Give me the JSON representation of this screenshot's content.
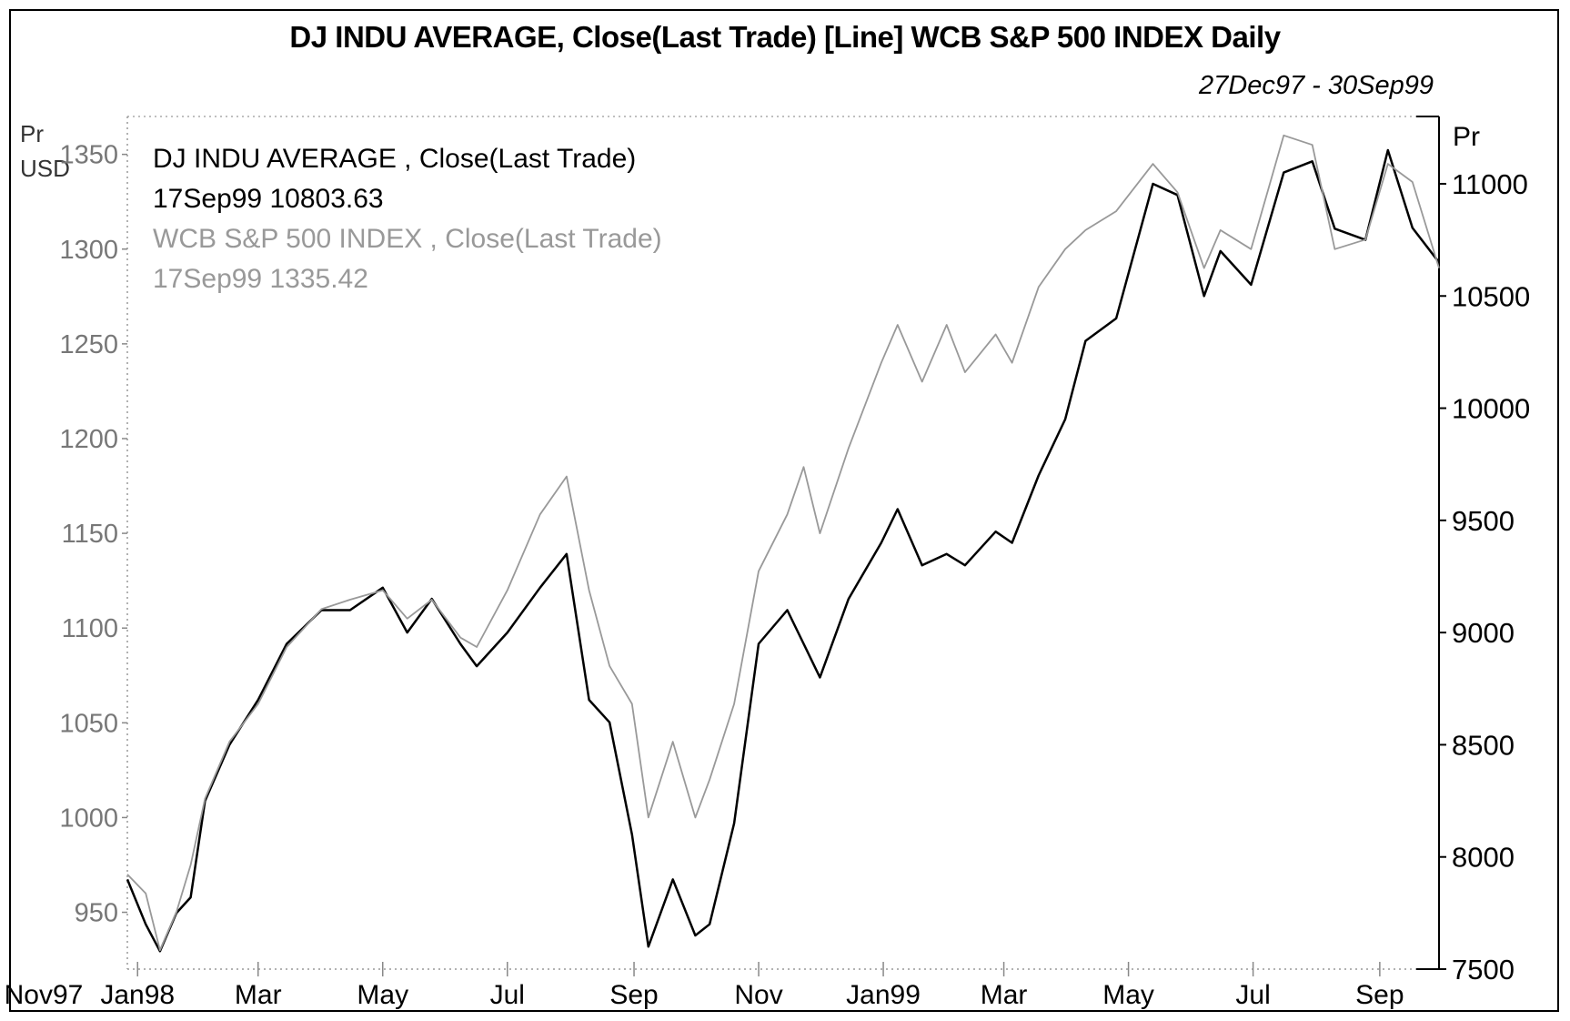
{
  "title": "DJ INDU AVERAGE, Close(Last Trade) [Line] WCB S&P 500 INDEX Daily",
  "date_range": "27Dec97 - 30Sep99",
  "left_axis_unit": [
    "Pr",
    "USD"
  ],
  "right_axis_unit": "Pr",
  "legend": [
    {
      "name": "DJ INDU AVERAGE , Close(Last Trade)",
      "last": "17Sep99 10803.63",
      "color": "#000000"
    },
    {
      "name": "WCB S&P 500 INDEX , Close(Last Trade)",
      "last": "17Sep99 1335.42",
      "color": "#999999"
    }
  ],
  "chart_data": {
    "type": "line",
    "title": "DJ INDU AVERAGE, Close(Last Trade) [Line] WCB S&P 500 INDEX Daily",
    "x_tick_labels": [
      "Nov97",
      "Jan98",
      "Mar",
      "May",
      "Jul",
      "Sep",
      "Nov",
      "Jan99",
      "Mar",
      "May",
      "Jul",
      "Sep"
    ],
    "x_range": [
      "1997-12-27",
      "1999-09-30"
    ],
    "left_axis": {
      "label": "Pr USD",
      "range": [
        920,
        1370
      ],
      "ticks": [
        950,
        1000,
        1050,
        1100,
        1150,
        1200,
        1250,
        1300,
        1350
      ]
    },
    "right_axis": {
      "label": "Pr",
      "range": [
        7500,
        11300
      ],
      "ticks": [
        7500,
        8000,
        8500,
        9000,
        9500,
        10000,
        10500,
        11000
      ]
    },
    "grid": false,
    "legend_position": "top-left",
    "series": [
      {
        "name": "DJ INDU AVERAGE , Close(Last Trade)",
        "axis": "right",
        "color": "#000000",
        "x": [
          "1997-12-27",
          "1998-01-05",
          "1998-01-12",
          "1998-01-20",
          "1998-01-27",
          "1998-02-03",
          "1998-02-15",
          "1998-03-01",
          "1998-03-15",
          "1998-04-01",
          "1998-04-15",
          "1998-05-01",
          "1998-05-13",
          "1998-05-25",
          "1998-06-08",
          "1998-06-16",
          "1998-07-01",
          "1998-07-17",
          "1998-07-30",
          "1998-08-10",
          "1998-08-20",
          "1998-08-31",
          "1998-09-08",
          "1998-09-20",
          "1998-10-01",
          "1998-10-08",
          "1998-10-20",
          "1998-11-01",
          "1998-11-15",
          "1998-11-23",
          "1998-12-01",
          "1998-12-15",
          "1998-12-31",
          "1999-01-08",
          "1999-01-20",
          "1999-02-01",
          "1999-02-10",
          "1999-02-25",
          "1999-03-05",
          "1999-03-18",
          "1999-03-31",
          "1999-04-10",
          "1999-04-25",
          "1999-05-13",
          "1999-05-25",
          "1999-06-07",
          "1999-06-15",
          "1999-06-30",
          "1999-07-16",
          "1999-07-30",
          "1999-08-10",
          "1999-08-25",
          "1999-09-05",
          "1999-09-17",
          "1999-09-30"
        ],
        "values": [
          7900,
          7700,
          7580,
          7750,
          7820,
          8250,
          8500,
          8700,
          8950,
          9100,
          9100,
          9200,
          9000,
          9150,
          8950,
          8850,
          9000,
          9200,
          9350,
          8700,
          8600,
          8100,
          7600,
          7900,
          7650,
          7700,
          8150,
          8950,
          9100,
          8950,
          8800,
          9150,
          9400,
          9550,
          9300,
          9350,
          9300,
          9450,
          9400,
          9700,
          9950,
          10300,
          10400,
          11000,
          10950,
          10500,
          10700,
          10550,
          11050,
          11100,
          10800,
          10750,
          11150,
          10803.63,
          10650
        ]
      },
      {
        "name": "WCB S&P 500 INDEX , Close(Last Trade)",
        "axis": "left",
        "color": "#999999",
        "x": [
          "1997-12-27",
          "1998-01-05",
          "1998-01-12",
          "1998-01-20",
          "1998-01-27",
          "1998-02-03",
          "1998-02-15",
          "1998-03-01",
          "1998-03-15",
          "1998-04-01",
          "1998-04-15",
          "1998-05-01",
          "1998-05-13",
          "1998-05-25",
          "1998-06-08",
          "1998-06-16",
          "1998-07-01",
          "1998-07-17",
          "1998-07-30",
          "1998-08-10",
          "1998-08-20",
          "1998-08-31",
          "1998-09-08",
          "1998-09-20",
          "1998-10-01",
          "1998-10-08",
          "1998-10-20",
          "1998-11-01",
          "1998-11-15",
          "1998-11-23",
          "1998-12-01",
          "1998-12-15",
          "1998-12-31",
          "1999-01-08",
          "1999-01-20",
          "1999-02-01",
          "1999-02-10",
          "1999-02-25",
          "1999-03-05",
          "1999-03-18",
          "1999-03-31",
          "1999-04-10",
          "1999-04-25",
          "1999-05-13",
          "1999-05-25",
          "1999-06-07",
          "1999-06-15",
          "1999-06-30",
          "1999-07-16",
          "1999-07-30",
          "1999-08-10",
          "1999-08-25",
          "1999-09-05",
          "1999-09-17",
          "1999-09-30"
        ],
        "values": [
          970,
          960,
          930,
          950,
          975,
          1010,
          1040,
          1060,
          1090,
          1110,
          1115,
          1120,
          1105,
          1115,
          1095,
          1090,
          1120,
          1160,
          1180,
          1120,
          1080,
          1060,
          1000,
          1040,
          1000,
          1020,
          1060,
          1130,
          1160,
          1185,
          1150,
          1195,
          1240,
          1260,
          1230,
          1260,
          1235,
          1255,
          1240,
          1280,
          1300,
          1310,
          1320,
          1345,
          1330,
          1290,
          1310,
          1300,
          1360,
          1355,
          1300,
          1305,
          1345,
          1335.42,
          1290
        ]
      }
    ]
  }
}
